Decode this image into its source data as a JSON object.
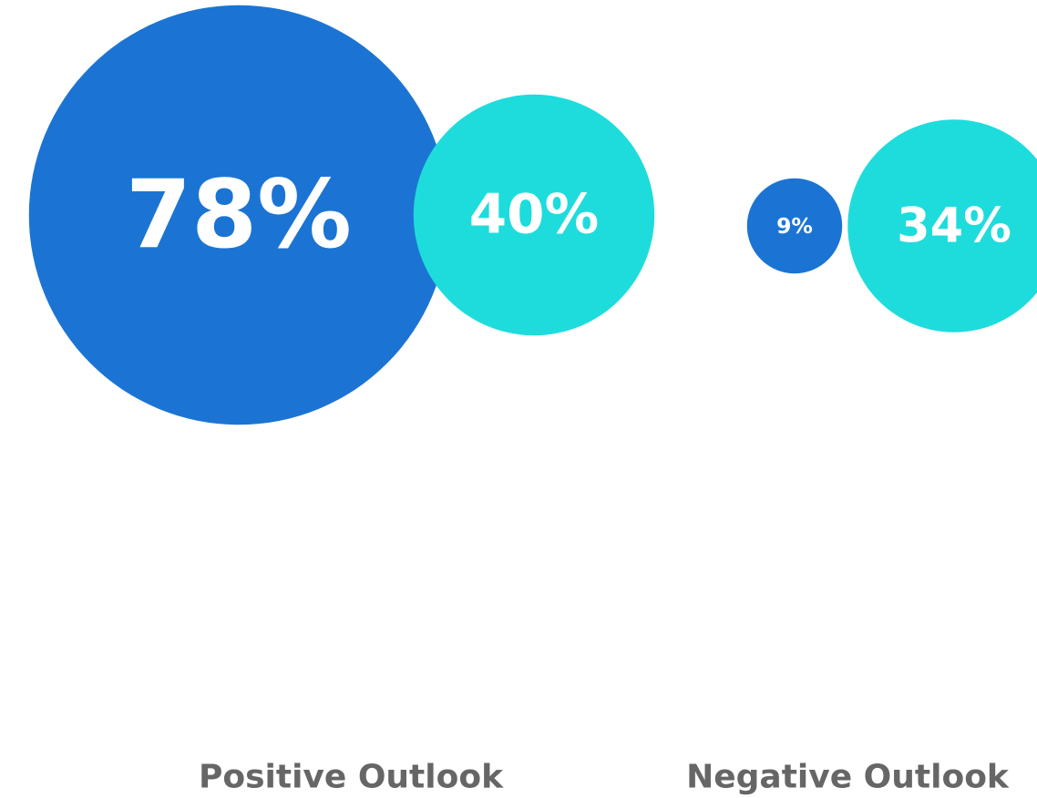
{
  "chart_data": {
    "type": "bubble",
    "categories": [
      "Positive Outlook",
      "Negative Outlook"
    ],
    "series": [
      {
        "color": "#1b74d3",
        "values": [
          78,
          9
        ],
        "value_labels": [
          "78%",
          "9%"
        ]
      },
      {
        "color": "#1edcdc",
        "values": [
          40,
          34
        ],
        "value_labels": [
          "40%",
          "34%"
        ]
      }
    ]
  }
}
